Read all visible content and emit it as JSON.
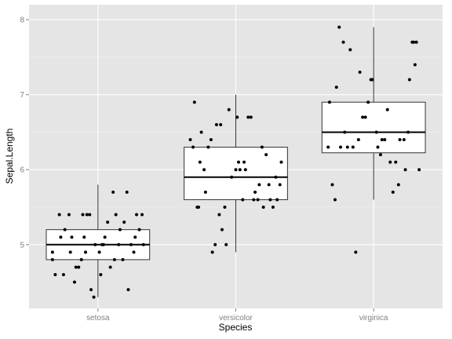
{
  "chart_data": {
    "type": "box",
    "title": "",
    "xlabel": "Species",
    "ylabel": "Sepal.Length",
    "categories": [
      "setosa",
      "versicolor",
      "virginica"
    ],
    "ylim": [
      4.15,
      8.2
    ],
    "yticks": [
      5,
      6,
      7,
      8
    ],
    "grid": true,
    "colors": {
      "panel": "#e5e5e5",
      "grid_major": "#ffffff",
      "grid_minor": "#f2f2f2",
      "box_fill": "#ffffff",
      "box_stroke": "#333333",
      "point": "#000000"
    },
    "boxes": [
      {
        "category": "setosa",
        "lower_whisker": 4.3,
        "q1": 4.8,
        "median": 5.0,
        "q3": 5.2,
        "upper_whisker": 5.8
      },
      {
        "category": "versicolor",
        "lower_whisker": 4.9,
        "q1": 5.6,
        "median": 5.9,
        "q3": 6.3,
        "upper_whisker": 7.0
      },
      {
        "category": "virginica",
        "lower_whisker": 5.6,
        "q1": 6.225,
        "median": 6.5,
        "q3": 6.9,
        "upper_whisker": 7.9
      }
    ],
    "points": [
      {
        "category": "setosa",
        "jitter": [
          -0.33,
          -0.28,
          -0.25,
          -0.21,
          -0.17,
          -0.14,
          -0.09,
          -0.06,
          -0.03,
          0.02,
          0.07,
          0.11,
          0.16,
          0.21,
          0.26,
          0.32,
          -0.31,
          -0.24,
          -0.19,
          -0.12,
          -0.05,
          0.01,
          0.05,
          0.13,
          0.19,
          0.24,
          0.3,
          -0.27,
          -0.16,
          -0.08,
          -0.02,
          0.09,
          0.15,
          0.22,
          0.28,
          -0.2,
          -0.11,
          0.04,
          0.12,
          0.27,
          -0.33,
          -0.1,
          0.03,
          0.18,
          0.33
        ],
        "values": [
          4.9,
          5.4,
          4.6,
          5.4,
          4.5,
          4.7,
          4.9,
          5.4,
          4.3,
          4.6,
          5.3,
          5.7,
          5.2,
          5.7,
          4.9,
          5.4,
          4.6,
          5.2,
          5.1,
          4.8,
          4.4,
          4.9,
          5.1,
          5.4,
          5.3,
          5.0,
          5.2,
          5.1,
          4.7,
          5.4,
          5.0,
          4.7,
          5.0,
          4.4,
          5.4,
          4.9,
          5.4,
          5.0,
          4.8,
          5.1,
          4.8,
          5.1,
          5.0,
          4.8,
          5.0
        ]
      },
      {
        "category": "versicolor",
        "jitter": [
          -0.33,
          -0.3,
          -0.27,
          -0.25,
          -0.22,
          -0.2,
          -0.17,
          -0.14,
          -0.1,
          -0.07,
          -0.03,
          0.0,
          0.02,
          0.05,
          0.09,
          0.13,
          0.17,
          0.22,
          0.25,
          0.29,
          0.33,
          -0.31,
          -0.26,
          -0.18,
          -0.11,
          -0.05,
          0.01,
          0.07,
          0.14,
          0.2,
          0.27,
          0.32,
          -0.23,
          -0.12,
          0.03,
          0.11,
          0.19,
          0.3,
          -0.28,
          -0.08,
          0.06,
          0.24,
          -0.15,
          0.16
        ],
        "values": [
          6.4,
          6.9,
          5.5,
          6.5,
          5.7,
          6.3,
          4.9,
          6.6,
          5.2,
          5.0,
          5.9,
          6.0,
          6.1,
          5.6,
          6.7,
          5.6,
          5.8,
          6.2,
          5.6,
          5.9,
          6.1,
          6.3,
          6.1,
          6.4,
          6.6,
          6.8,
          6.7,
          6.0,
          5.7,
          5.5,
          5.5,
          5.8,
          6.0,
          5.4,
          6.0,
          6.7,
          6.3,
          5.6,
          5.5,
          5.5,
          6.1,
          5.8,
          5.0,
          5.6
        ]
      },
      {
        "category": "virginica",
        "jitter": [
          -0.33,
          -0.3,
          -0.27,
          -0.24,
          -0.21,
          -0.17,
          -0.13,
          -0.1,
          -0.06,
          -0.02,
          0.02,
          0.06,
          0.1,
          0.14,
          0.18,
          0.22,
          0.25,
          0.28,
          0.31,
          0.33,
          -0.32,
          -0.28,
          -0.22,
          -0.15,
          -0.08,
          -0.01,
          0.05,
          0.12,
          0.19,
          0.26,
          0.3,
          -0.25,
          -0.11,
          0.03,
          0.16,
          0.29,
          -0.19,
          0.08,
          0.23,
          -0.04
        ],
        "values": [
          6.3,
          5.8,
          7.1,
          6.3,
          6.5,
          7.6,
          4.9,
          7.3,
          6.7,
          7.2,
          6.5,
          6.4,
          6.8,
          5.7,
          5.8,
          6.4,
          6.5,
          7.7,
          7.7,
          6.0,
          6.9,
          5.6,
          7.7,
          6.3,
          6.7,
          7.2,
          6.2,
          6.1,
          6.4,
          7.2,
          7.4,
          7.9,
          6.4,
          6.3,
          6.1,
          7.7,
          6.3,
          6.4,
          6.0,
          6.9
        ]
      }
    ]
  }
}
